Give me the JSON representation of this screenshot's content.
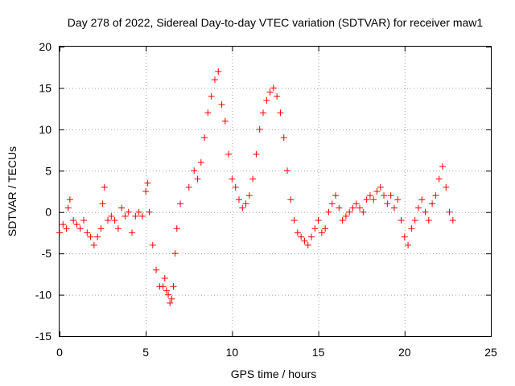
{
  "chart_data": {
    "type": "scatter",
    "title": "Day 278 of 2022, Sidereal Day-to-day VTEC variation (SDTVAR) for receiver maw1",
    "xlabel": "GPS time / hours",
    "ylabel": "SDTVAR / TECUs",
    "xlim": [
      0,
      25
    ],
    "ylim": [
      -15,
      20
    ],
    "xticks": [
      0,
      5,
      10,
      15,
      20,
      25
    ],
    "xtick_labels": [
      "0",
      "5",
      "10",
      "15",
      "20",
      "25"
    ],
    "yticks": [
      -15,
      -10,
      -5,
      0,
      5,
      10,
      15,
      20
    ],
    "ytick_labels": [
      "-15",
      "-10",
      "-5",
      "0",
      "5",
      "10",
      "15",
      "20"
    ],
    "grid": true,
    "marker": "+",
    "color": "#ff0000",
    "series": [
      {
        "name": "maw1",
        "x": [
          0.0,
          0.2,
          0.4,
          0.5,
          0.6,
          0.8,
          1.0,
          1.2,
          1.4,
          1.6,
          1.8,
          2.0,
          2.2,
          2.4,
          2.5,
          2.6,
          2.8,
          3.0,
          3.2,
          3.4,
          3.6,
          3.8,
          4.0,
          4.2,
          4.4,
          4.6,
          4.8,
          5.0,
          5.1,
          5.2,
          5.4,
          5.6,
          5.8,
          6.0,
          6.1,
          6.2,
          6.3,
          6.4,
          6.5,
          6.6,
          6.7,
          6.8,
          7.0,
          7.5,
          7.8,
          8.0,
          8.2,
          8.4,
          8.6,
          8.8,
          9.0,
          9.2,
          9.4,
          9.6,
          9.8,
          10.0,
          10.2,
          10.4,
          10.6,
          10.8,
          11.0,
          11.2,
          11.4,
          11.6,
          11.8,
          12.0,
          12.2,
          12.4,
          12.6,
          12.8,
          13.0,
          13.2,
          13.4,
          13.6,
          13.8,
          14.0,
          14.2,
          14.4,
          14.6,
          14.8,
          15.0,
          15.2,
          15.4,
          15.6,
          15.8,
          16.0,
          16.2,
          16.4,
          16.6,
          16.8,
          17.0,
          17.2,
          17.4,
          17.6,
          17.8,
          18.0,
          18.2,
          18.4,
          18.6,
          18.8,
          19.0,
          19.2,
          19.4,
          19.6,
          19.8,
          20.0,
          20.2,
          20.4,
          20.6,
          20.8,
          21.0,
          21.2,
          21.4,
          21.6,
          21.8,
          22.0,
          22.2,
          22.4,
          22.6,
          22.8
        ],
        "y": [
          -2.5,
          -1.5,
          -2.0,
          0.5,
          1.5,
          -1.0,
          -1.5,
          -2.0,
          -1.0,
          -2.5,
          -3.0,
          -4.0,
          -3.0,
          -2.0,
          1.0,
          3.0,
          -1.0,
          -0.5,
          -1.0,
          -2.0,
          0.5,
          -0.5,
          0.0,
          -2.5,
          -0.5,
          0.0,
          -0.5,
          2.5,
          3.5,
          0.0,
          -4.0,
          -7.0,
          -9.0,
          -9.0,
          -8.0,
          -9.5,
          -10.0,
          -11.0,
          -10.5,
          -9.0,
          -5.0,
          -2.0,
          1.0,
          3.0,
          5.0,
          4.0,
          6.0,
          9.0,
          12.0,
          14.0,
          16.0,
          17.0,
          13.0,
          11.0,
          7.0,
          4.0,
          3.0,
          1.5,
          0.5,
          1.0,
          2.0,
          4.0,
          7.0,
          10.0,
          12.0,
          13.5,
          14.5,
          15.0,
          14.0,
          12.0,
          9.0,
          5.0,
          1.5,
          -1.0,
          -2.5,
          -3.0,
          -3.5,
          -4.0,
          -3.0,
          -2.0,
          -1.0,
          -2.5,
          -2.0,
          0.0,
          1.0,
          2.0,
          0.5,
          -1.0,
          -0.5,
          0.0,
          0.5,
          1.0,
          0.5,
          0.0,
          1.5,
          2.0,
          1.5,
          2.5,
          3.0,
          2.0,
          1.0,
          2.0,
          0.5,
          1.5,
          -1.0,
          -3.0,
          -4.0,
          -2.0,
          -1.0,
          0.5,
          1.5,
          0.0,
          -1.0,
          1.0,
          2.0,
          4.0,
          5.5,
          3.0,
          0.0,
          -1.0
        ]
      }
    ]
  }
}
